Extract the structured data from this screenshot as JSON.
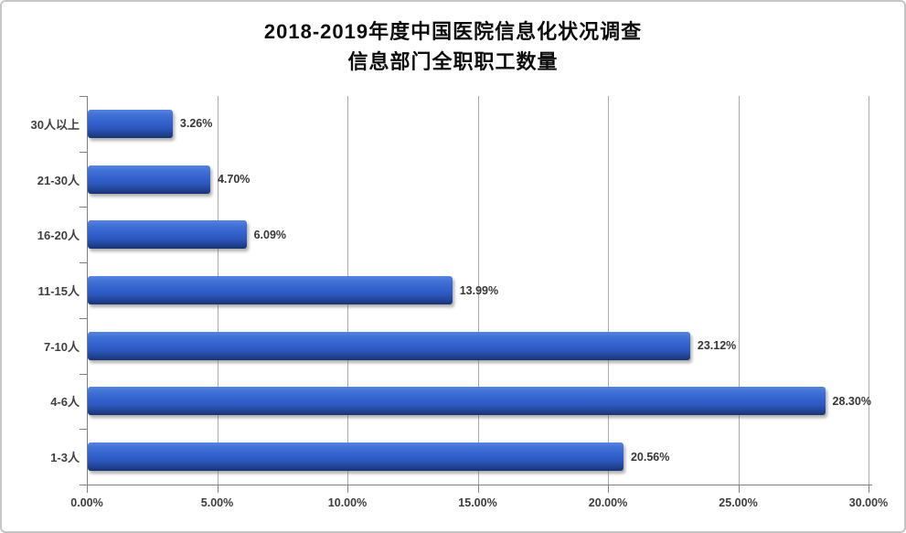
{
  "title": {
    "line1": "2018-2019年度中国医院信息化状况调查",
    "line2": "信息部门全职职工数量"
  },
  "chart_data": {
    "type": "bar",
    "orientation": "horizontal",
    "title": "2018-2019年度中国医院信息化状况调查 信息部门全职职工数量",
    "categories": [
      "30人以上",
      "21-30人",
      "16-20人",
      "11-15人",
      "7-10人",
      "4-6人",
      "1-3人"
    ],
    "values": [
      3.26,
      4.7,
      6.09,
      13.99,
      23.12,
      28.3,
      20.56
    ],
    "value_labels": [
      "3.26%",
      "4.70%",
      "6.09%",
      "13.99%",
      "23.12%",
      "28.30%",
      "20.56%"
    ],
    "x_axis": {
      "min": 0,
      "max": 30,
      "step": 5,
      "tick_labels": [
        "0.00%",
        "5.00%",
        "10.00%",
        "15.00%",
        "20.00%",
        "25.00%",
        "30.00%"
      ]
    },
    "grid": true,
    "legend": "none",
    "colors": {
      "bar_top": "#5584e2",
      "bar_mid": "#3463cf",
      "bar_bottom": "#18336f",
      "gridline": "#a8a8a8",
      "axis": "#7f7f7f",
      "label_text": "#3f3f3f",
      "title_text": "#0d0d0d",
      "frame_border": "#c5c5c5",
      "background": "#ffffff"
    }
  }
}
